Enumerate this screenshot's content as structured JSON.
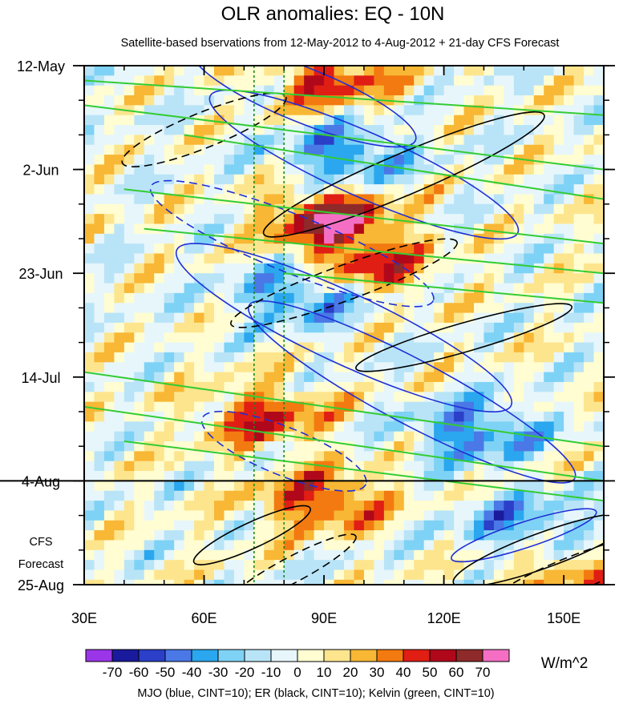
{
  "chart_data": {
    "type": "heatmap",
    "title": "OLR anomalies: EQ - 10N",
    "subtitle": "Satellite-based bservations from 12-May-2012 to 4-Aug-2012 + 21-day CFS Forecast",
    "x_axis": {
      "range": [
        30,
        160
      ],
      "ticks": [
        {
          "value": 30,
          "label": "30E"
        },
        {
          "value": 60,
          "label": "60E"
        },
        {
          "value": 90,
          "label": "90E"
        },
        {
          "value": 120,
          "label": "120E"
        },
        {
          "value": 150,
          "label": "150E"
        }
      ],
      "minor_step": 10
    },
    "y_axis": {
      "range": [
        "2012-05-12",
        "2012-08-25"
      ],
      "direction": "time increases downward",
      "ticks": [
        {
          "value": "2012-05-12",
          "label": "12-May"
        },
        {
          "value": "2012-06-02",
          "label": "2-Jun"
        },
        {
          "value": "2012-06-23",
          "label": "23-Jun"
        },
        {
          "value": "2012-07-14",
          "label": "14-Jul"
        },
        {
          "value": "2012-08-04",
          "label": "4-Aug"
        },
        {
          "value": "2012-08-25",
          "label": "25-Aug"
        }
      ],
      "minor_step_days": 7
    },
    "forecast_start": "2012-08-04",
    "forecast_label": [
      "CFS",
      "Forecast"
    ],
    "reference_longitudes": [
      72.5,
      80
    ],
    "colorbar": {
      "unit": "W/m^2",
      "levels": [
        -70,
        -60,
        -50,
        -40,
        -30,
        -20,
        -10,
        0,
        10,
        20,
        30,
        40,
        50,
        60,
        70
      ],
      "colors": [
        "#9b35e8",
        "#1a1a9c",
        "#2b3fc8",
        "#4a78e6",
        "#2aa7ee",
        "#7ed2f5",
        "#b9e4f7",
        "#e6f6fb",
        "#fffdd1",
        "#fde58e",
        "#f8b735",
        "#f27a10",
        "#e01e14",
        "#b0081a",
        "#8e2a2a",
        "#f46fc4"
      ]
    },
    "anomaly_features": [
      {
        "sign": "positive",
        "center": {
          "lon": 92,
          "date": "2012-05-15"
        },
        "value": 45
      },
      {
        "sign": "negative",
        "center": {
          "lon": 95,
          "date": "2012-05-30"
        },
        "value": -45
      },
      {
        "sign": "positive",
        "center": {
          "lon": 92,
          "date": "2012-06-12"
        },
        "value": 65
      },
      {
        "sign": "positive",
        "center": {
          "lon": 100,
          "date": "2012-06-22"
        },
        "value": 50
      },
      {
        "sign": "negative",
        "center": {
          "lon": 85,
          "date": "2012-06-27"
        },
        "value": -50
      },
      {
        "sign": "positive",
        "center": {
          "lon": 75,
          "date": "2012-07-22"
        },
        "value": 45
      },
      {
        "sign": "negative",
        "center": {
          "lon": 128,
          "date": "2012-07-25"
        },
        "value": -45
      },
      {
        "sign": "positive",
        "center": {
          "lon": 90,
          "date": "2012-08-08"
        },
        "value": 50
      },
      {
        "sign": "negative",
        "center": {
          "lon": 140,
          "date": "2012-08-13"
        },
        "value": -40
      },
      {
        "sign": "positive",
        "center": {
          "lon": 150,
          "date": "2012-08-22"
        },
        "value": 30
      }
    ],
    "contour_series": [
      {
        "name": "MJO",
        "color": "#1f2fd6",
        "cint": 10
      },
      {
        "name": "ER",
        "color": "#000000",
        "cint": 10
      },
      {
        "name": "Kelvin",
        "color": "#33cc33",
        "cint": 10
      }
    ],
    "legend_note": "MJO (blue, CINT=10); ER (black, CINT=10); Kelvin (green, CINT=10)"
  }
}
